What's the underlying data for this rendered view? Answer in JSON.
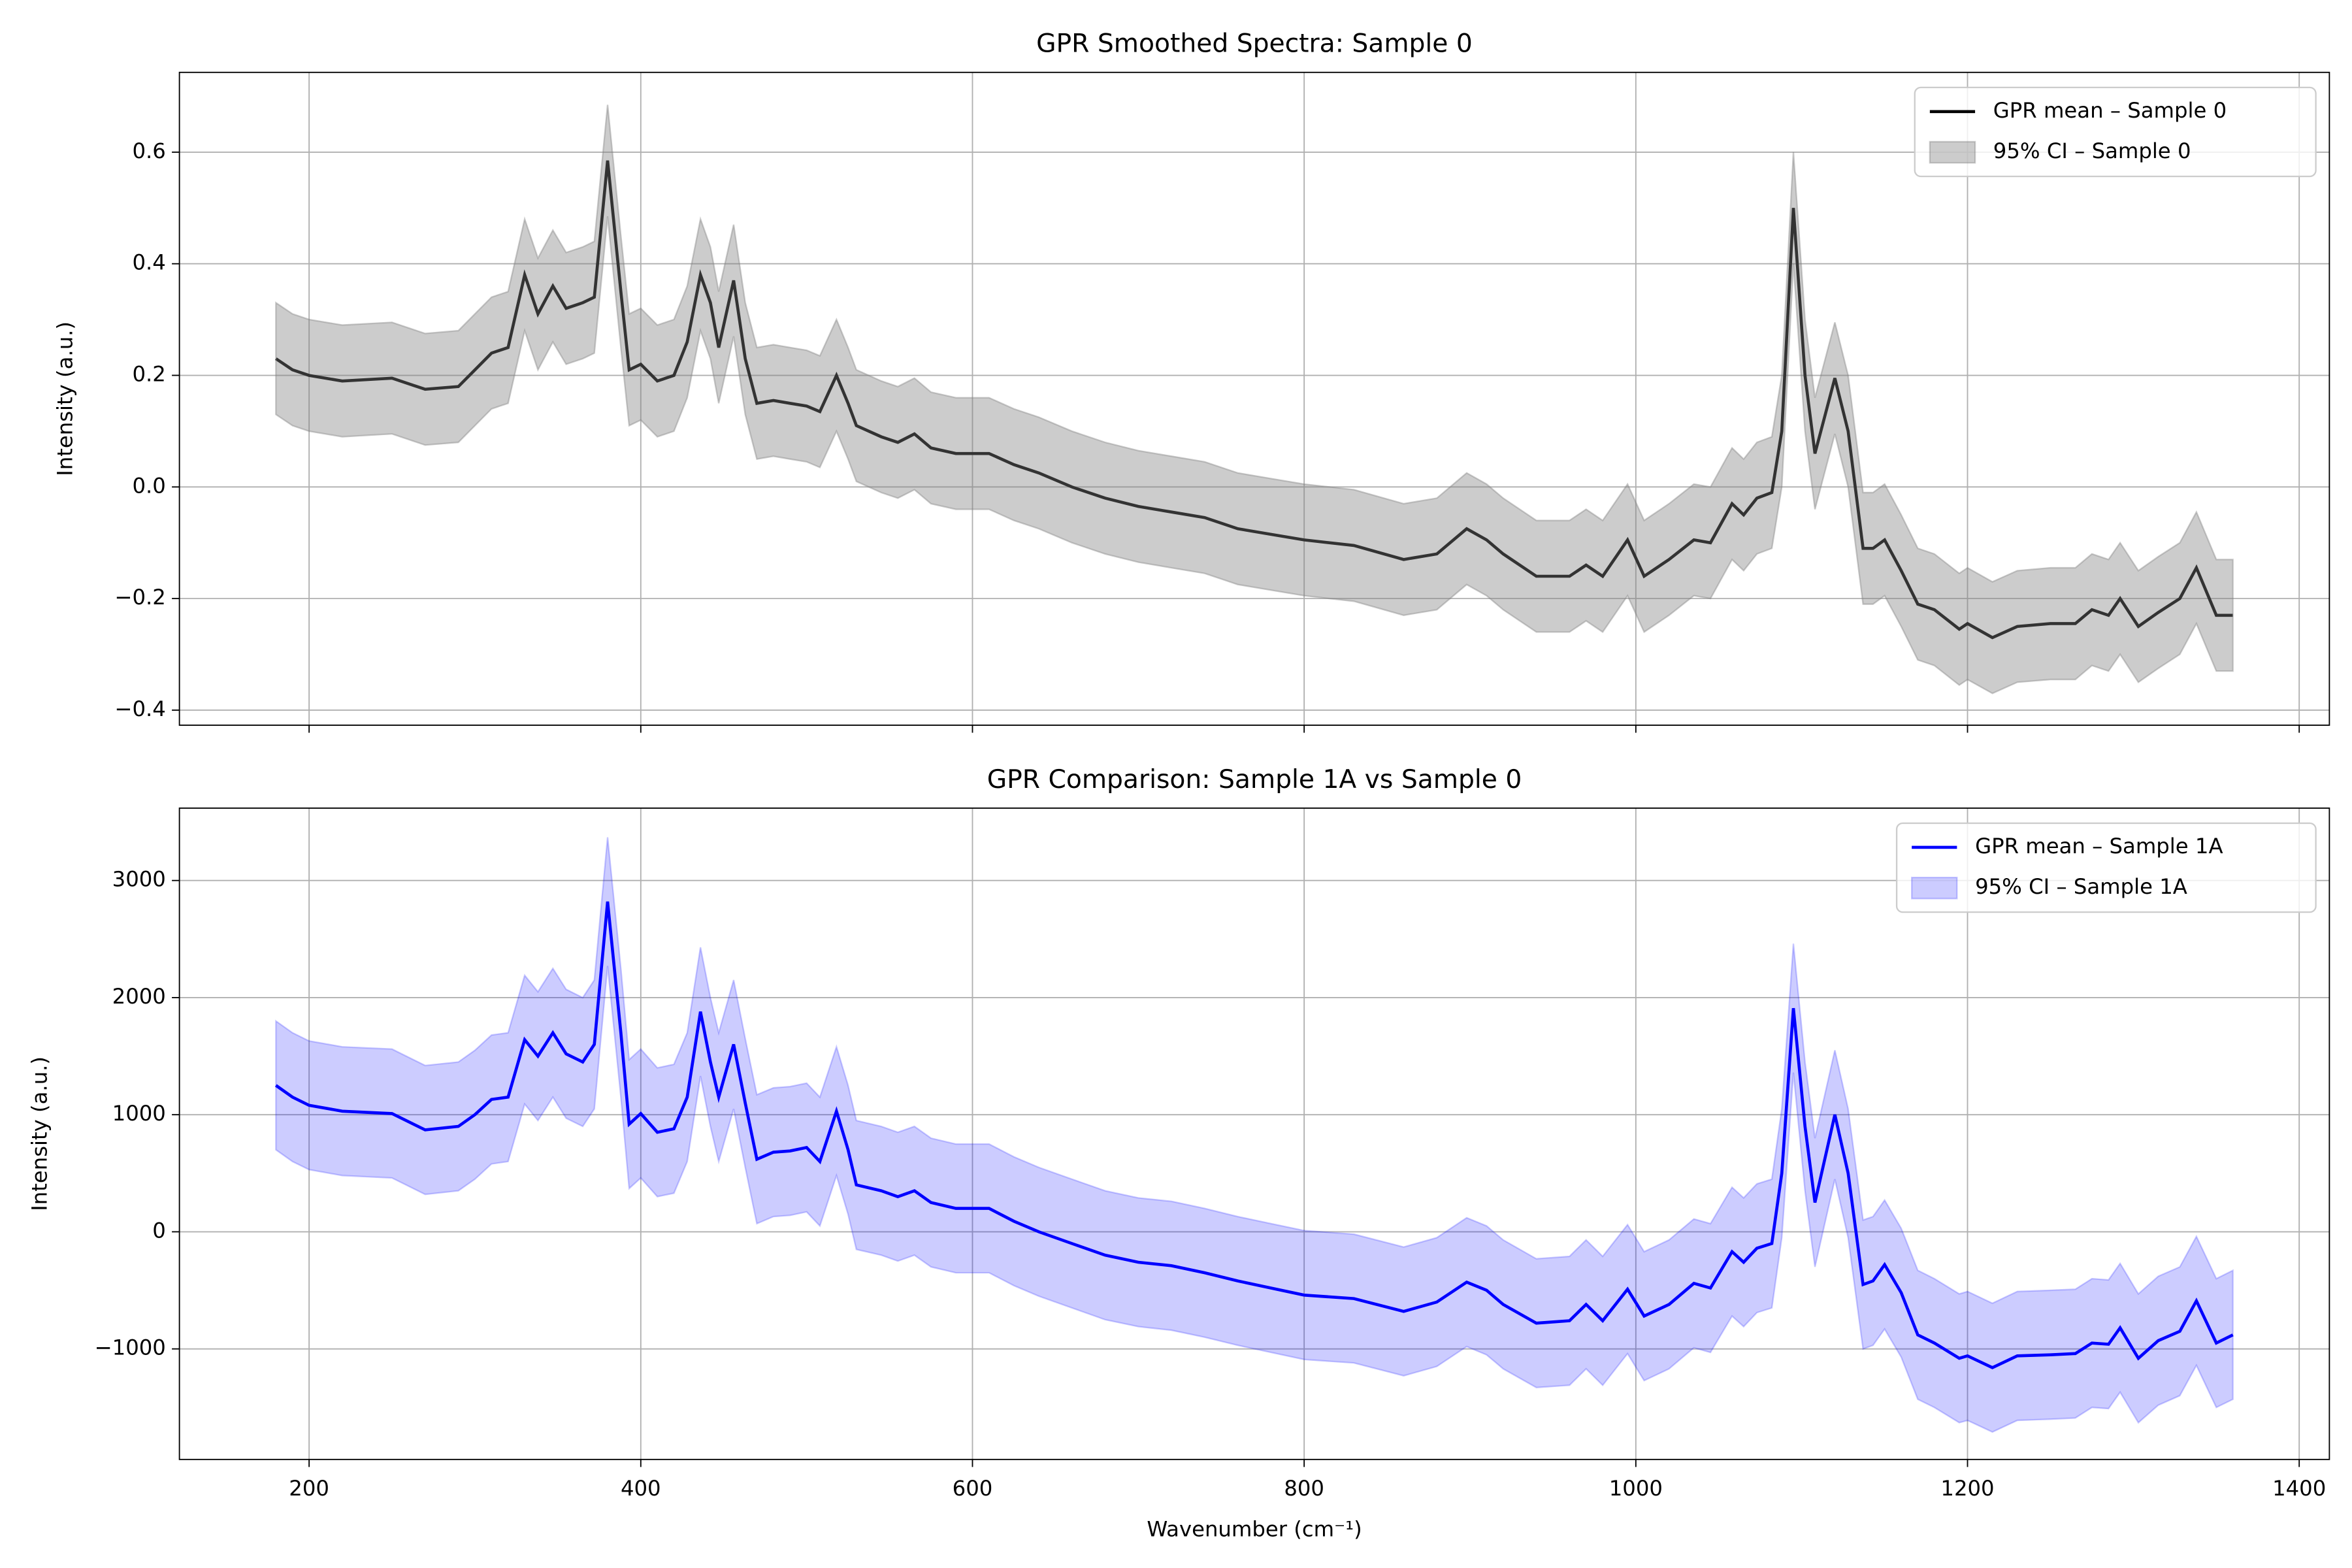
{
  "chart_data": [
    {
      "type": "line",
      "title": "GPR Smoothed Spectra: Sample 0",
      "ylabel": "Intensity (a.u.)",
      "show_xticklabels": false,
      "grid": true,
      "legend": "upper right",
      "xlim": [
        121.8,
        1418.2
      ],
      "ylim": [
        -0.427,
        0.743
      ],
      "xticks": [
        200,
        400,
        600,
        800,
        1000,
        1200,
        1400
      ],
      "yticks": [
        {
          "value": -0.4,
          "label": "−0.4"
        },
        {
          "value": -0.2,
          "label": "−0.2"
        },
        {
          "value": 0,
          "label": "0.0"
        },
        0.2,
        0.4,
        0.6
      ],
      "x": [
        180,
        190,
        200,
        220,
        250,
        270,
        290,
        300,
        310,
        320,
        330,
        338,
        347,
        355,
        365,
        372,
        380,
        388,
        393,
        400,
        410,
        420,
        428,
        436,
        442,
        447,
        456,
        463,
        470,
        480,
        490,
        500,
        508,
        518,
        525,
        530,
        545,
        555,
        565,
        575,
        590,
        610,
        625,
        640,
        660,
        680,
        700,
        720,
        740,
        760,
        780,
        800,
        830,
        860,
        880,
        898,
        910,
        920,
        940,
        960,
        970,
        980,
        995,
        1005,
        1020,
        1035,
        1045,
        1058,
        1065,
        1073,
        1082,
        1088,
        1095,
        1102,
        1108,
        1120,
        1128,
        1137,
        1143,
        1150,
        1160,
        1170,
        1180,
        1195,
        1200,
        1215,
        1230,
        1250,
        1265,
        1275,
        1285,
        1292,
        1303,
        1315,
        1328,
        1338,
        1350,
        1360
      ],
      "series": [
        {
          "name": "GPR mean – Sample 0",
          "color": "#000000",
          "values": [
            0.23,
            0.21,
            0.2,
            0.19,
            0.195,
            0.175,
            0.18,
            0.21,
            0.24,
            0.25,
            0.38,
            0.31,
            0.36,
            0.32,
            0.33,
            0.34,
            0.585,
            0.35,
            0.21,
            0.22,
            0.19,
            0.2,
            0.26,
            0.38,
            0.33,
            0.25,
            0.37,
            0.23,
            0.15,
            0.155,
            0.15,
            0.145,
            0.135,
            0.2,
            0.15,
            0.11,
            0.09,
            0.08,
            0.095,
            0.07,
            0.06,
            0.06,
            0.04,
            0.025,
            0.0,
            -0.02,
            -0.035,
            -0.045,
            -0.055,
            -0.075,
            -0.085,
            -0.095,
            -0.105,
            -0.13,
            -0.12,
            -0.075,
            -0.095,
            -0.12,
            -0.16,
            -0.16,
            -0.14,
            -0.16,
            -0.095,
            -0.16,
            -0.13,
            -0.095,
            -0.1,
            -0.03,
            -0.05,
            -0.02,
            -0.01,
            0.1,
            0.5,
            0.2,
            0.06,
            0.195,
            0.1,
            -0.11,
            -0.11,
            -0.095,
            -0.15,
            -0.21,
            -0.22,
            -0.255,
            -0.245,
            -0.27,
            -0.25,
            -0.245,
            -0.245,
            -0.22,
            -0.23,
            -0.2,
            -0.25,
            -0.225,
            -0.2,
            -0.145,
            -0.23,
            -0.23
          ]
        },
        {
          "name": "95% CI – Sample 0",
          "color": "#808080",
          "opacity": 0.4,
          "upper": [
            0.33,
            0.31,
            0.3,
            0.29,
            0.295,
            0.275,
            0.28,
            0.31,
            0.34,
            0.35,
            0.48,
            0.41,
            0.46,
            0.42,
            0.43,
            0.44,
            0.685,
            0.45,
            0.31,
            0.32,
            0.29,
            0.3,
            0.36,
            0.48,
            0.43,
            0.35,
            0.47,
            0.33,
            0.25,
            0.255,
            0.25,
            0.245,
            0.235,
            0.3,
            0.25,
            0.21,
            0.19,
            0.18,
            0.195,
            0.17,
            0.16,
            0.16,
            0.14,
            0.125,
            0.1,
            0.08,
            0.065,
            0.055,
            0.045,
            0.025,
            0.015,
            0.005,
            -0.005,
            -0.03,
            -0.02,
            0.025,
            0.005,
            -0.02,
            -0.06,
            -0.06,
            -0.04,
            -0.06,
            0.005,
            -0.06,
            -0.03,
            0.005,
            0,
            0.07,
            0.05,
            0.08,
            0.09,
            0.2,
            0.6,
            0.3,
            0.16,
            0.295,
            0.2,
            -0.01,
            -0.01,
            0.005,
            -0.05,
            -0.11,
            -0.12,
            -0.155,
            -0.145,
            -0.17,
            -0.15,
            -0.145,
            -0.145,
            -0.12,
            -0.13,
            -0.1,
            -0.15,
            -0.125,
            -0.1,
            -0.045,
            -0.13,
            -0.13
          ],
          "lower": [
            0.13,
            0.11,
            0.1,
            0.09,
            0.095,
            0.075,
            0.08,
            0.11,
            0.14,
            0.15,
            0.28,
            0.21,
            0.26,
            0.22,
            0.23,
            0.24,
            0.485,
            0.25,
            0.11,
            0.12,
            0.09,
            0.1,
            0.16,
            0.28,
            0.23,
            0.15,
            0.27,
            0.13,
            0.05,
            0.055,
            0.05,
            0.045,
            0.035,
            0.1,
            0.05,
            0.01,
            -0.01,
            -0.02,
            -0.005,
            -0.03,
            -0.04,
            -0.04,
            -0.06,
            -0.075,
            -0.1,
            -0.12,
            -0.135,
            -0.145,
            -0.155,
            -0.175,
            -0.185,
            -0.195,
            -0.205,
            -0.23,
            -0.22,
            -0.175,
            -0.195,
            -0.22,
            -0.26,
            -0.26,
            -0.24,
            -0.26,
            -0.195,
            -0.26,
            -0.23,
            -0.195,
            -0.2,
            -0.13,
            -0.15,
            -0.12,
            -0.11,
            0,
            0.4,
            0.1,
            -0.04,
            0.095,
            0,
            -0.21,
            -0.21,
            -0.195,
            -0.25,
            -0.31,
            -0.32,
            -0.355,
            -0.345,
            -0.37,
            -0.35,
            -0.345,
            -0.345,
            -0.32,
            -0.33,
            -0.3,
            -0.35,
            -0.325,
            -0.3,
            -0.245,
            -0.33,
            -0.33
          ]
        }
      ]
    },
    {
      "type": "line",
      "title": "GPR Comparison: Sample 1A vs Sample 0",
      "xlabel": "Wavenumber (cm⁻¹)",
      "ylabel": "Intensity (a.u.)",
      "show_xticklabels": true,
      "grid": true,
      "legend": "upper right",
      "xlim": [
        121.8,
        1418.2
      ],
      "ylim": [
        -1944,
        3618
      ],
      "xticks": [
        200,
        400,
        600,
        800,
        1000,
        1200,
        1400
      ],
      "yticks": [
        {
          "value": -1000,
          "label": "−1000"
        },
        0,
        1000,
        2000,
        3000
      ],
      "x": [
        180,
        190,
        200,
        220,
        250,
        270,
        290,
        300,
        310,
        320,
        330,
        338,
        347,
        355,
        365,
        372,
        380,
        388,
        393,
        400,
        410,
        420,
        428,
        436,
        442,
        447,
        456,
        463,
        470,
        480,
        490,
        500,
        508,
        518,
        525,
        530,
        545,
        555,
        565,
        575,
        590,
        610,
        625,
        640,
        660,
        680,
        700,
        720,
        740,
        760,
        780,
        800,
        830,
        860,
        880,
        898,
        910,
        920,
        940,
        960,
        970,
        980,
        995,
        1005,
        1020,
        1035,
        1045,
        1058,
        1065,
        1073,
        1082,
        1088,
        1095,
        1102,
        1108,
        1120,
        1128,
        1137,
        1143,
        1150,
        1160,
        1170,
        1180,
        1195,
        1200,
        1215,
        1230,
        1250,
        1265,
        1275,
        1285,
        1292,
        1303,
        1315,
        1328,
        1338,
        1350,
        1360
      ],
      "series": [
        {
          "name": "GPR mean – Sample 1A",
          "color": "#0000ff",
          "values": [
            1250,
            1150,
            1080,
            1030,
            1010,
            870,
            900,
            1000,
            1130,
            1150,
            1640,
            1500,
            1700,
            1520,
            1450,
            1600,
            2820,
            1700,
            920,
            1010,
            850,
            880,
            1150,
            1880,
            1450,
            1150,
            1600,
            1100,
            620,
            680,
            690,
            720,
            600,
            1030,
            700,
            400,
            350,
            300,
            350,
            250,
            200,
            200,
            90,
            0,
            -100,
            -200,
            -260,
            -290,
            -350,
            -420,
            -480,
            -540,
            -570,
            -680,
            -600,
            -430,
            -500,
            -620,
            -780,
            -760,
            -620,
            -760,
            -490,
            -720,
            -620,
            -440,
            -480,
            -170,
            -260,
            -140,
            -100,
            500,
            1910,
            900,
            250,
            1000,
            500,
            -450,
            -420,
            -280,
            -520,
            -880,
            -950,
            -1080,
            -1060,
            -1160,
            -1060,
            -1050,
            -1040,
            -950,
            -960,
            -820,
            -1080,
            -930,
            -850,
            -590,
            -950,
            -880
          ]
        },
        {
          "name": "95% CI – Sample 1A",
          "color": "#0000ff",
          "opacity": 0.2,
          "upper": [
            1800,
            1700,
            1630,
            1580,
            1560,
            1420,
            1450,
            1550,
            1680,
            1700,
            2190,
            2050,
            2250,
            2070,
            2000,
            2150,
            3370,
            2250,
            1470,
            1560,
            1400,
            1430,
            1700,
            2430,
            2000,
            1700,
            2150,
            1650,
            1170,
            1230,
            1240,
            1270,
            1150,
            1580,
            1250,
            950,
            900,
            850,
            900,
            800,
            750,
            750,
            640,
            550,
            450,
            350,
            290,
            260,
            200,
            130,
            70,
            10,
            -20,
            -130,
            -50,
            120,
            50,
            -70,
            -230,
            -210,
            -70,
            -210,
            60,
            -170,
            -70,
            110,
            70,
            380,
            290,
            410,
            450,
            1050,
            2460,
            1450,
            800,
            1550,
            1050,
            100,
            130,
            270,
            30,
            -330,
            -400,
            -530,
            -510,
            -610,
            -510,
            -500,
            -490,
            -400,
            -410,
            -270,
            -530,
            -380,
            -300,
            -40,
            -400,
            -330
          ],
          "lower": [
            700,
            600,
            530,
            480,
            460,
            320,
            350,
            450,
            580,
            600,
            1090,
            950,
            1150,
            970,
            900,
            1050,
            2270,
            1150,
            370,
            460,
            300,
            330,
            600,
            1330,
            900,
            600,
            1050,
            550,
            70,
            130,
            140,
            170,
            50,
            480,
            150,
            -150,
            -200,
            -250,
            -200,
            -300,
            -350,
            -350,
            -460,
            -550,
            -650,
            -750,
            -810,
            -840,
            -900,
            -970,
            -1030,
            -1090,
            -1120,
            -1230,
            -1150,
            -980,
            -1050,
            -1170,
            -1330,
            -1310,
            -1170,
            -1310,
            -1040,
            -1270,
            -1170,
            -990,
            -1030,
            -720,
            -810,
            -690,
            -650,
            -50,
            1360,
            350,
            -300,
            450,
            -50,
            -1000,
            -970,
            -830,
            -1070,
            -1430,
            -1500,
            -1630,
            -1610,
            -1710,
            -1610,
            -1600,
            -1590,
            -1500,
            -1510,
            -1370,
            -1630,
            -1480,
            -1400,
            -1140,
            -1500,
            -1430
          ]
        }
      ]
    }
  ]
}
